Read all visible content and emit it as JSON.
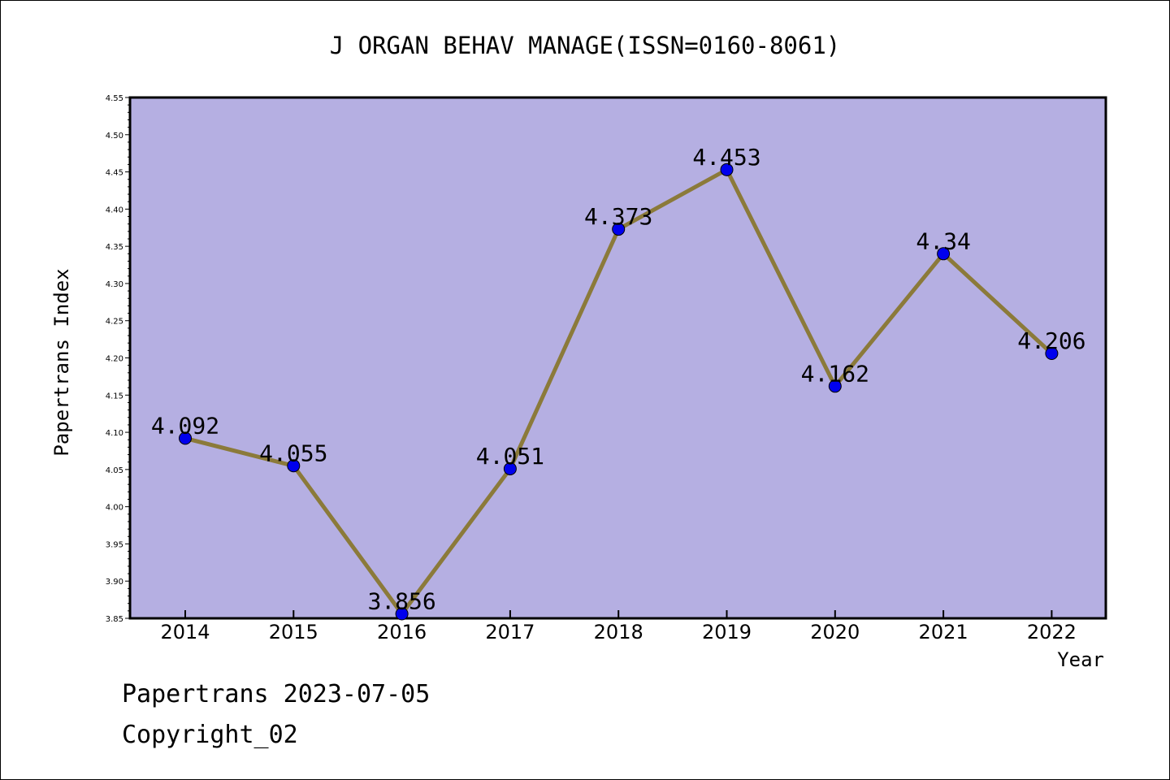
{
  "chart_data": {
    "type": "line",
    "title": "J ORGAN BEHAV MANAGE(ISSN=0160-8061)",
    "xlabel": "Year",
    "ylabel": "Papertrans Index",
    "categories": [
      "2014",
      "2015",
      "2016",
      "2017",
      "2018",
      "2019",
      "2020",
      "2021",
      "2022"
    ],
    "series": [
      {
        "values": [
          4.092,
          4.055,
          3.856,
          4.051,
          4.373,
          4.453,
          4.162,
          4.34,
          4.206
        ],
        "labels": [
          "4.092",
          "4.055",
          "3.856",
          "4.051",
          "4.373",
          "4.453",
          "4.162",
          "4.34",
          "4.206"
        ]
      }
    ],
    "ylim": [
      3.85,
      4.55
    ],
    "yticks": [
      "3.85",
      "3.90",
      "3.95",
      "4.00",
      "4.05",
      "4.10",
      "4.15",
      "4.20",
      "4.25",
      "4.30",
      "4.35",
      "4.40",
      "4.45",
      "4.50",
      "4.55"
    ],
    "grid": false,
    "colors": {
      "plot_background": "#b5afe2",
      "line": "#8b7a3a",
      "marker": "#0000ee"
    }
  },
  "footer": {
    "line1": "Papertrans 2023-07-05",
    "line2": "Copyright_02"
  }
}
